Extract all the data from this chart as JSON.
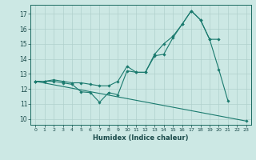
{
  "xlabel": "Humidex (Indice chaleur)",
  "bg_color": "#cce8e4",
  "grid_color": "#b0d0cc",
  "line_color": "#1a7a6e",
  "xlim": [
    -0.5,
    23.5
  ],
  "ylim": [
    9.6,
    17.6
  ],
  "yticks": [
    10,
    11,
    12,
    13,
    14,
    15,
    16,
    17
  ],
  "xticks": [
    0,
    1,
    2,
    3,
    4,
    5,
    6,
    7,
    8,
    9,
    10,
    11,
    12,
    13,
    14,
    15,
    16,
    17,
    18,
    19,
    20,
    21,
    22,
    23
  ],
  "line1_x": [
    0,
    1,
    2,
    3,
    4,
    5,
    6,
    7,
    8,
    9,
    10,
    11,
    12,
    13,
    14,
    15,
    16,
    17,
    18,
    19,
    20,
    21
  ],
  "line1_y": [
    12.5,
    12.5,
    12.5,
    12.4,
    12.3,
    11.8,
    11.75,
    11.1,
    11.75,
    11.6,
    13.2,
    13.1,
    13.1,
    14.2,
    14.3,
    15.4,
    16.3,
    17.2,
    16.6,
    15.3,
    13.3,
    11.2
  ],
  "line2_x": [
    0,
    1,
    2,
    3,
    4,
    5,
    6,
    7,
    8,
    9,
    10,
    11,
    12,
    13,
    14,
    15,
    16,
    17,
    18,
    19,
    20
  ],
  "line2_y": [
    12.5,
    12.5,
    12.6,
    12.5,
    12.4,
    12.4,
    12.3,
    12.2,
    12.2,
    12.5,
    13.5,
    13.1,
    13.1,
    14.3,
    15.0,
    15.5,
    16.3,
    17.2,
    16.6,
    15.3,
    15.3
  ],
  "line3_x": [
    0,
    23
  ],
  "line3_y": [
    12.5,
    9.85
  ]
}
